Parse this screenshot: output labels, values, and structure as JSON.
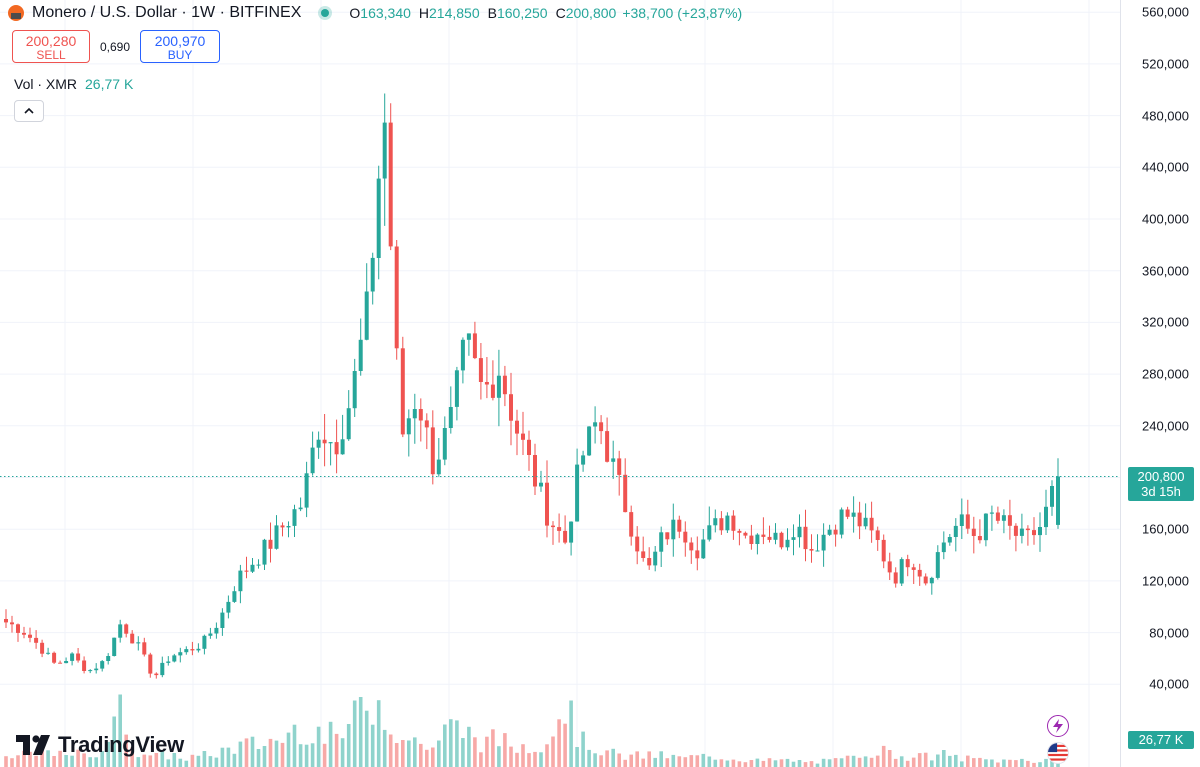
{
  "header": {
    "title": "Monero / U.S. Dollar · 1W · BITFINEX",
    "open_label": "O",
    "open": "163,340",
    "high_label": "H",
    "high": "214,850",
    "low_label": "B",
    "low": "160,250",
    "close_label": "C",
    "close": "200,800",
    "change": "+38,700 (+23,87%)"
  },
  "trade": {
    "sell_price": "200,280",
    "sell_label": "SELL",
    "spread": "0,690",
    "buy_price": "200,970",
    "buy_label": "BUY"
  },
  "volume_legend": {
    "label": "Vol · XMR",
    "value": "26,77 K"
  },
  "price_tag": {
    "price": "200,800",
    "countdown": "3d 15h"
  },
  "volume_tag": "26,77 K",
  "branding": "TradingView",
  "colors": {
    "up": "#26a69a",
    "down": "#ef5350",
    "up_volume": "#8fd3cc",
    "down_volume": "#f7a9a7",
    "grid": "#f0f3fa",
    "last_price_line": "#26a69a"
  },
  "icons": {
    "logo": "monero-logo-icon",
    "live": "live-status-dot",
    "collapse": "chevron-up-icon",
    "flash": "lightning-icon",
    "flag": "us-flag-icon"
  },
  "chart_data": {
    "type": "candlestick",
    "interval": "1W",
    "series_name": "Monero / U.S. Dollar",
    "y_axis_ticks": [
      "40,000",
      "80,000",
      "120,000",
      "160,000",
      "200,000",
      "240,000",
      "280,000",
      "320,000",
      "360,000",
      "400,000",
      "440,000",
      "480,000",
      "520,000",
      "560,000"
    ],
    "y_axis_tick_values": [
      40000,
      80000,
      120000,
      160000,
      200000,
      240000,
      280000,
      320000,
      360000,
      400000,
      440000,
      480000,
      520000,
      560000
    ],
    "y_range": [
      0,
      570000
    ],
    "grid": true,
    "last_price": 200800,
    "price_anchors": [
      88000,
      82000,
      70000,
      55000,
      62000,
      50000,
      58000,
      88000,
      70000,
      45000,
      62000,
      66000,
      72000,
      90000,
      120000,
      135000,
      148000,
      165000,
      180000,
      240000,
      225000,
      262000,
      330000,
      485000,
      230000,
      265000,
      210000,
      240000,
      305000,
      265000,
      285000,
      240000,
      205000,
      170000,
      150000,
      215000,
      245000,
      205000,
      165000,
      125000,
      155000,
      165000,
      145000,
      160000,
      172000,
      155000,
      160000,
      150000,
      165000,
      145000,
      160000,
      172000,
      165000,
      150000,
      122000,
      140000,
      120000,
      150000,
      165000,
      155000,
      170000,
      160000,
      150000,
      163000,
      200800
    ],
    "volume_anchors": [
      15,
      25,
      40,
      20,
      30,
      18,
      45,
      110,
      35,
      20,
      25,
      18,
      22,
      30,
      40,
      45,
      50,
      60,
      85,
      70,
      60,
      80,
      150,
      120,
      60,
      50,
      40,
      80,
      70,
      50,
      55,
      40,
      45,
      60,
      130,
      50,
      40,
      25,
      20,
      25,
      22,
      18,
      20,
      22,
      18,
      15,
      12,
      14,
      12,
      10,
      12,
      14,
      30,
      35,
      25,
      22,
      20,
      25,
      18,
      15,
      14,
      12,
      16,
      10,
      27
    ]
  }
}
